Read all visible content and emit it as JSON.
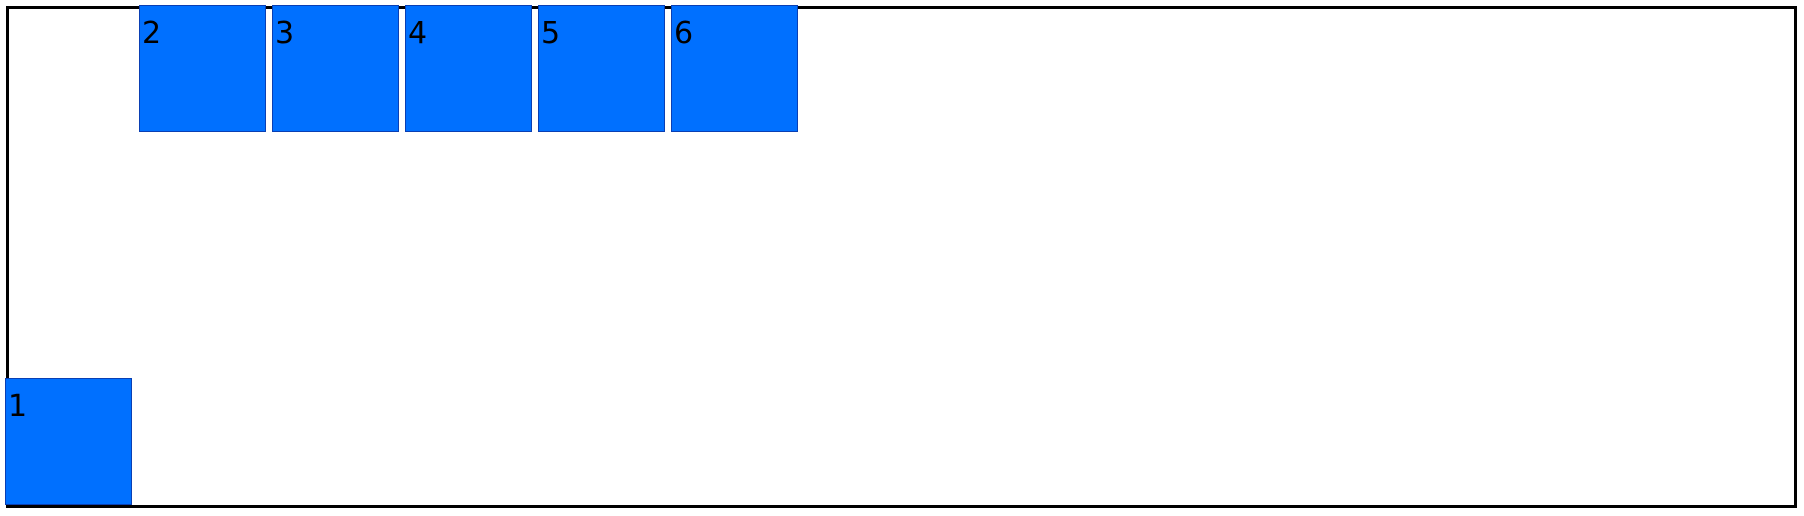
{
  "colors": {
    "box_fill": "#0070ff",
    "box_border": "#0a3fb3",
    "frame_border": "#000000",
    "background": "#ffffff",
    "label_text": "#000000"
  },
  "boxes": [
    {
      "label": "1"
    },
    {
      "label": "2"
    },
    {
      "label": "3"
    },
    {
      "label": "4"
    },
    {
      "label": "5"
    },
    {
      "label": "6"
    }
  ]
}
